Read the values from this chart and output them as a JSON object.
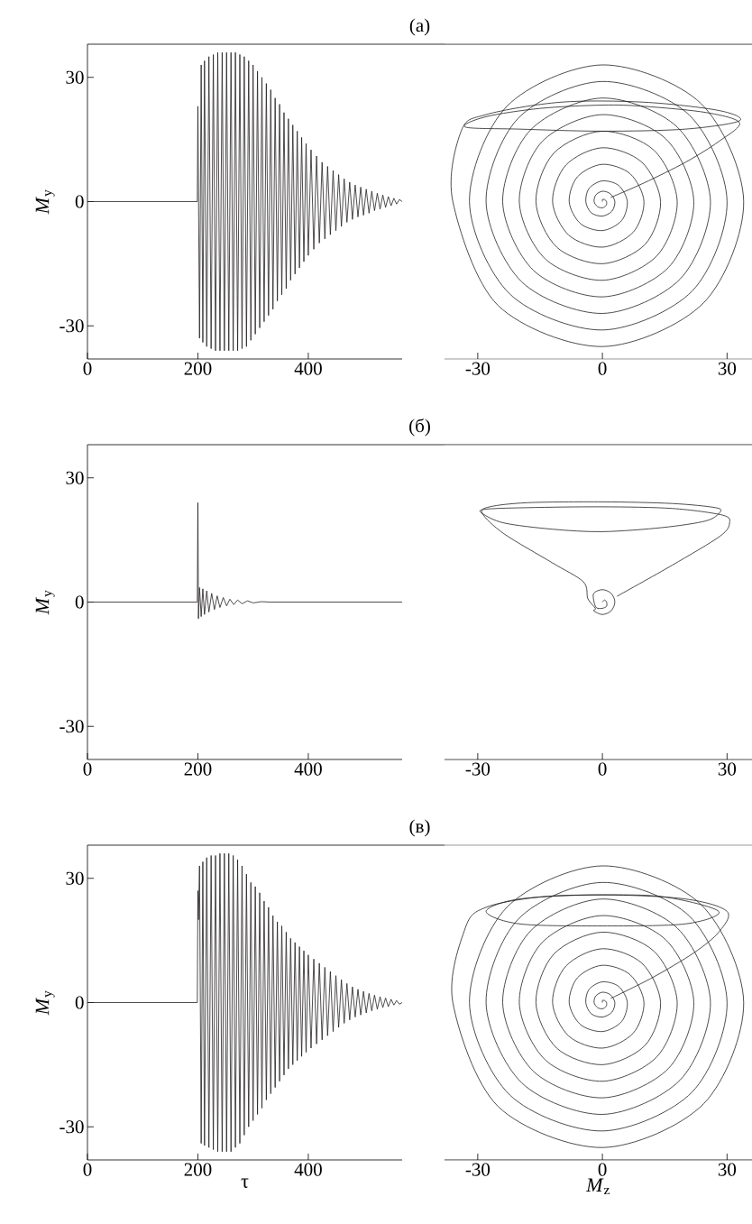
{
  "chart_data": [
    {
      "type": "line",
      "title": "(а)",
      "ylabel": "*M*$_{y}$",
      "xlim": [
        0,
        570
      ],
      "ylim": [
        -38,
        38
      ],
      "xticks": [
        0,
        200,
        400
      ],
      "yticks": [
        -30,
        0,
        30
      ],
      "series": [
        {
          "color": "#231f20",
          "x": [
            0,
            199,
            200,
            203,
            206,
            209,
            212,
            216,
            220,
            224,
            228,
            232,
            236,
            240,
            244,
            248,
            252,
            256,
            260,
            264,
            268,
            272,
            276,
            280,
            284,
            288,
            292,
            296,
            300,
            304,
            308,
            312,
            316,
            320,
            324,
            328,
            332,
            336,
            340,
            344,
            348,
            352,
            356,
            360,
            364,
            368,
            372,
            376,
            380,
            384,
            388,
            392,
            396,
            400,
            405,
            410,
            415,
            420,
            425,
            430,
            435,
            440,
            445,
            450,
            455,
            460,
            465,
            470,
            475,
            480,
            485,
            490,
            495,
            500,
            505,
            510,
            515,
            520,
            525,
            530,
            535,
            540,
            545,
            550,
            555,
            560,
            565,
            570
          ],
          "values": [
            0,
            0,
            23,
            -33,
            33,
            -34,
            34,
            -35,
            35,
            -35.5,
            35.5,
            -36,
            36,
            -36,
            36,
            -36,
            36,
            -36,
            36,
            -36,
            36,
            -36,
            35.5,
            -35.5,
            35,
            -35,
            34,
            -33.5,
            33,
            -32,
            31.5,
            -30.5,
            30,
            -29,
            28.5,
            -27.5,
            27,
            -26,
            25,
            -24,
            23.5,
            -22.5,
            21.5,
            -21,
            20,
            -19,
            18.5,
            -17.5,
            17,
            -16,
            15.5,
            -14.5,
            14,
            -13,
            12.5,
            -11.5,
            11,
            -10,
            9.5,
            -9,
            8.5,
            -8,
            7.5,
            -7,
            6.5,
            -6,
            5.5,
            -5,
            4.7,
            -4.3,
            4,
            -3.7,
            3.5,
            -3.3,
            3,
            -2.8,
            2.5,
            -2.2,
            2,
            -1.8,
            1.6,
            -1.4,
            1.2,
            -1,
            0.8,
            -0.6,
            0.5,
            0
          ]
        }
      ]
    },
    {
      "type": "line",
      "xlim": [
        -38,
        36
      ],
      "ylim": [
        -38,
        38
      ],
      "xticks": [
        -30,
        0,
        30
      ],
      "tick_labels": "x",
      "series": [
        {
          "color": "#231f20",
          "x": [
            2,
            10,
            20,
            28,
            33,
            25,
            10,
            0,
            -15,
            -28,
            -33,
            -20,
            0,
            20,
            33,
            28,
            10,
            -10,
            -28,
            -34,
            -36,
            -25.1,
            0,
            24.4,
            34,
            23.7,
            0,
            -23,
            -32,
            -22.3,
            0,
            21.6,
            30,
            20.9,
            0,
            -20.2,
            -28,
            -19.4,
            0,
            18.7,
            26,
            18,
            0,
            -17.3,
            -24,
            -16.6,
            0,
            15.9,
            22,
            15.2,
            0,
            -14.5,
            -20,
            -13.8,
            0,
            13.1,
            18,
            12.4,
            0,
            -11.7,
            -16,
            -11,
            0,
            10.3,
            14,
            9.5,
            0,
            -8.8,
            -12,
            -8.1,
            0,
            7.4,
            10,
            6.7,
            0,
            -6,
            -8,
            -5.3,
            0,
            4.6,
            6,
            3.9,
            0,
            -3.2,
            -4,
            -2.7,
            0,
            2.3,
            3,
            1.9,
            0,
            -1.6,
            -2,
            -1.2,
            0,
            0.9,
            1,
            0.5,
            0,
            0
          ],
          "values": [
            1,
            4.5,
            9.5,
            14.5,
            19,
            21.5,
            23,
            23.3,
            22.5,
            20.5,
            18,
            17.5,
            17,
            17.5,
            19.5,
            22,
            24,
            24,
            21,
            17,
            0,
            -25.1,
            -35,
            -24.4,
            0,
            23.7,
            33,
            23,
            0,
            -22.3,
            -31,
            -21.6,
            0,
            20.9,
            29,
            20.2,
            0,
            -19.4,
            -27,
            -18.7,
            0,
            18,
            25,
            17.3,
            0,
            -16.6,
            -23,
            -15.9,
            0,
            15.2,
            21,
            14.5,
            0,
            -13.8,
            -19,
            -13.1,
            0,
            12.4,
            17,
            11.7,
            0,
            -11,
            -15,
            -10.3,
            0,
            9.5,
            13,
            8.8,
            0,
            -8.1,
            -11,
            -7.4,
            0,
            6.7,
            9,
            6,
            0,
            -5.3,
            -7,
            -4.6,
            0,
            3.9,
            5,
            3.2,
            0,
            -2.7,
            -3.5,
            -2.3,
            0,
            1.9,
            2.5,
            1.6,
            0,
            -1.2,
            -1.5,
            -0.9,
            0,
            0.5,
            0.5,
            0
          ]
        }
      ]
    },
    {
      "type": "line",
      "title": "(б)",
      "ylabel": "*M*$_{y}$",
      "xlim": [
        0,
        570
      ],
      "ylim": [
        -38,
        38
      ],
      "xticks": [
        0,
        200,
        400
      ],
      "yticks": [
        -30,
        0,
        30
      ],
      "series": [
        {
          "color": "#231f20",
          "x": [
            0,
            199,
            200,
            201,
            203,
            206,
            209,
            212,
            216,
            220,
            225,
            230,
            235,
            240,
            246,
            252,
            258,
            265,
            272,
            280,
            290,
            300,
            315,
            330,
            570
          ],
          "values": [
            0,
            0,
            24,
            -4,
            3.5,
            -3.5,
            3.2,
            -3,
            2.7,
            -2.4,
            2.1,
            -1.8,
            1.5,
            -1.3,
            1.1,
            -0.9,
            0.7,
            -0.6,
            0.5,
            -0.4,
            0.3,
            -0.2,
            0.1,
            0,
            0
          ]
        }
      ]
    },
    {
      "type": "line",
      "xlim": [
        -38,
        36
      ],
      "ylim": [
        -38,
        38
      ],
      "xticks": [
        -30,
        0,
        30
      ],
      "tick_labels": "x",
      "series": [
        {
          "color": "#231f20",
          "x": [
            3.5,
            16.8,
            28.3,
            30.6,
            28.9,
            16.8,
            0,
            -17.9,
            -28.3,
            -28.9,
            -23.7,
            -12.1,
            0,
            14.5,
            24.9,
            28.3,
            27.2,
            16.8,
            0,
            -17.9,
            -27.1,
            -28.9,
            -23.7,
            -12.1,
            -4.6,
            -3.5,
            -1.7,
            -2.1,
            0,
            2.1,
            3,
            2.1,
            0,
            -2.1,
            -2,
            -1.4,
            0,
            1,
            1,
            0.5,
            0
          ],
          "values": [
            1.4,
            8.9,
            15.9,
            19.1,
            21,
            22.6,
            23,
            22.8,
            22.4,
            21.4,
            19.1,
            17.6,
            17,
            18,
            19.6,
            21.7,
            22.8,
            23.8,
            24.2,
            24,
            23,
            21.4,
            16.5,
            9.5,
            4.9,
            0.8,
            -1.5,
            -2.1,
            -3,
            -2.1,
            0,
            2.1,
            3,
            2.1,
            0,
            -1.4,
            -1.5,
            -1,
            0,
            0.5,
            0
          ]
        }
      ]
    },
    {
      "type": "line",
      "title": "(в)",
      "xlabel": "τ",
      "ylabel": "*M*$_{y}$",
      "xlim": [
        0,
        570
      ],
      "ylim": [
        -38,
        38
      ],
      "xticks": [
        0,
        200,
        400
      ],
      "yticks": [
        -30,
        0,
        30
      ],
      "series": [
        {
          "color": "#231f20",
          "x": [
            0,
            199,
            200,
            201,
            203,
            206,
            209,
            212,
            216,
            220,
            224,
            228,
            232,
            236,
            240,
            244,
            248,
            252,
            256,
            260,
            264,
            268,
            272,
            276,
            280,
            284,
            288,
            292,
            296,
            300,
            304,
            308,
            312,
            316,
            320,
            324,
            328,
            332,
            336,
            340,
            344,
            348,
            352,
            356,
            360,
            364,
            368,
            372,
            376,
            380,
            384,
            388,
            392,
            396,
            400,
            405,
            410,
            415,
            420,
            425,
            430,
            435,
            440,
            445,
            450,
            455,
            460,
            465,
            470,
            475,
            480,
            485,
            490,
            495,
            500,
            505,
            510,
            515,
            520,
            525,
            530,
            535,
            540,
            545,
            550,
            555,
            560,
            565,
            570
          ],
          "values": [
            0,
            0,
            27,
            20,
            33,
            -34,
            34,
            -34.5,
            35,
            -35,
            35.5,
            -35.5,
            35.5,
            -36,
            36,
            -36,
            36,
            -36,
            36,
            -36,
            35.5,
            -35,
            34.5,
            -34,
            33,
            -32,
            31,
            -30,
            29,
            -28.5,
            28,
            -27,
            26.5,
            -25.5,
            24.5,
            -23.5,
            23,
            -22,
            21,
            -20.5,
            19.5,
            -19,
            18.5,
            -17.5,
            17,
            -16,
            15.5,
            -15,
            14.5,
            -14,
            13.5,
            -13,
            12.5,
            -12,
            11.5,
            -11,
            10.5,
            -10,
            9.5,
            -9,
            8.5,
            -8,
            7.5,
            -7,
            6.5,
            -6,
            5.5,
            -5,
            4.6,
            -4.2,
            3.8,
            -3.5,
            3.2,
            -3,
            2.7,
            -2.5,
            2.2,
            -2,
            1.8,
            -1.6,
            1.4,
            -1.2,
            1.1,
            -1,
            0.8,
            -0.6,
            0.5,
            -0.4,
            0
          ]
        }
      ]
    },
    {
      "type": "line",
      "xlabel": "*M*$_{z}$",
      "xlim": [
        -38,
        36
      ],
      "ylim": [
        -38,
        38
      ],
      "xticks": [
        -30,
        0,
        30
      ],
      "tick_labels": "x",
      "series": [
        {
          "color": "#231f20",
          "x": [
            2,
            12,
            22,
            28,
            30,
            20,
            0,
            -20,
            -28,
            -20,
            0,
            20,
            28,
            15,
            0,
            -15,
            -28,
            -33,
            -36,
            -25.1,
            0,
            24.4,
            34,
            23.7,
            0,
            -23,
            -32,
            -22.3,
            0,
            21.6,
            30,
            20.9,
            0,
            -20.2,
            -28,
            -19.4,
            0,
            18.7,
            26,
            18,
            0,
            -17.3,
            -24,
            -16.6,
            0,
            15.9,
            22,
            15.2,
            0,
            -14.5,
            -20,
            -13.8,
            0,
            13.1,
            18,
            12.4,
            0,
            -11.7,
            -16,
            -11,
            0,
            10.3,
            14,
            9.5,
            0,
            -8.8,
            -12,
            -8.1,
            0,
            7.4,
            10,
            6.7,
            0,
            -6,
            -8,
            -5.3,
            0,
            4.6,
            6,
            3.9,
            0,
            -3.2,
            -4,
            -2.7,
            0,
            2.3,
            3,
            1.9,
            0,
            -1.6,
            -2,
            -1.2,
            0,
            0.9,
            1,
            0.5,
            0,
            0
          ],
          "values": [
            1,
            6,
            12,
            17,
            22,
            25,
            26,
            25,
            22,
            19,
            18.5,
            19,
            22,
            25.5,
            26,
            25.5,
            23,
            18,
            0,
            -25.1,
            -35,
            -24.4,
            0,
            23.7,
            33,
            23,
            0,
            -22.3,
            -31,
            -21.6,
            0,
            20.9,
            29,
            20.2,
            0,
            -19.4,
            -27,
            -18.7,
            0,
            18,
            25,
            17.3,
            0,
            -16.6,
            -23,
            -15.9,
            0,
            15.2,
            21,
            14.5,
            0,
            -13.8,
            -19,
            -13.1,
            0,
            12.4,
            17,
            11.7,
            0,
            -11,
            -15,
            -10.3,
            0,
            9.5,
            13,
            8.8,
            0,
            -8.1,
            -11,
            -7.4,
            0,
            6.7,
            9,
            6,
            0,
            -5.3,
            -7,
            -4.6,
            0,
            3.9,
            5,
            3.2,
            0,
            -2.7,
            -3.5,
            -2.3,
            0,
            1.9,
            2.5,
            1.6,
            0,
            -1.2,
            -1.5,
            -0.9,
            0,
            0.5,
            0.5,
            0
          ]
        }
      ]
    }
  ]
}
